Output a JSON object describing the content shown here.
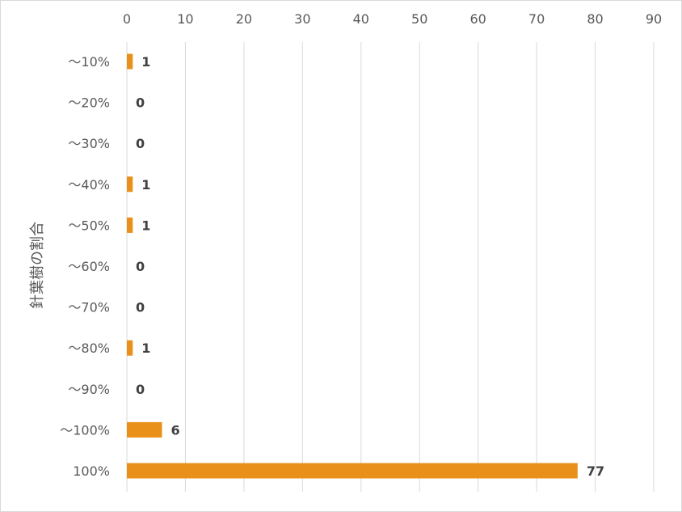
{
  "chart_data": {
    "type": "bar",
    "orientation": "horizontal",
    "ylabel": "針葉樹の割合",
    "categories": [
      "～10%",
      "～20%",
      "～30%",
      "～40%",
      "～50%",
      "～60%",
      "～70%",
      "～80%",
      "～90%",
      "～100%",
      "100%"
    ],
    "values": [
      1,
      0,
      0,
      1,
      1,
      0,
      0,
      1,
      0,
      6,
      77
    ],
    "xlim": [
      0,
      90
    ],
    "xticks": [
      "0",
      "10",
      "20",
      "30",
      "40",
      "50",
      "60",
      "70",
      "80",
      "90"
    ],
    "x_axis_position": "top",
    "grid": true,
    "legend": "none",
    "data_labels": true,
    "bar_color": "#E8901A",
    "grid_color": "#D9D9D9"
  }
}
